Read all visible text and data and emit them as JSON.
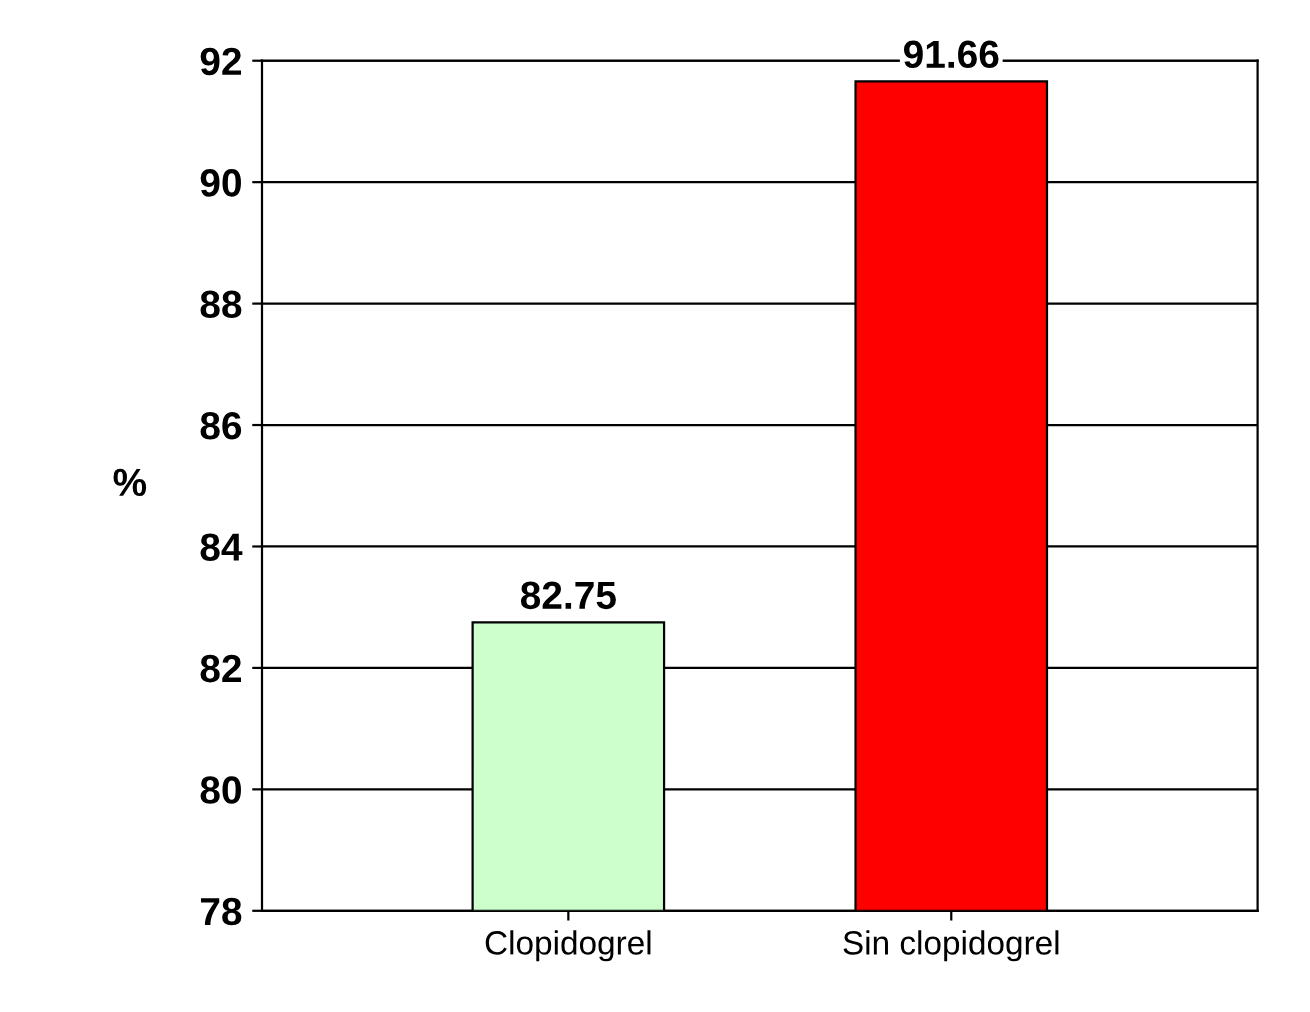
{
  "chart_data": {
    "type": "bar",
    "ylabel": "%",
    "categories": [
      "Clopidogrel",
      "Sin clopidogrel"
    ],
    "values": [
      82.75,
      91.66
    ],
    "colors": [
      "#ccffcc",
      "#ff0000"
    ],
    "ylim": [
      78,
      92
    ],
    "yticks": [
      78,
      80,
      82,
      84,
      86,
      88,
      90,
      92
    ],
    "grid": "y",
    "data_labels": true
  }
}
